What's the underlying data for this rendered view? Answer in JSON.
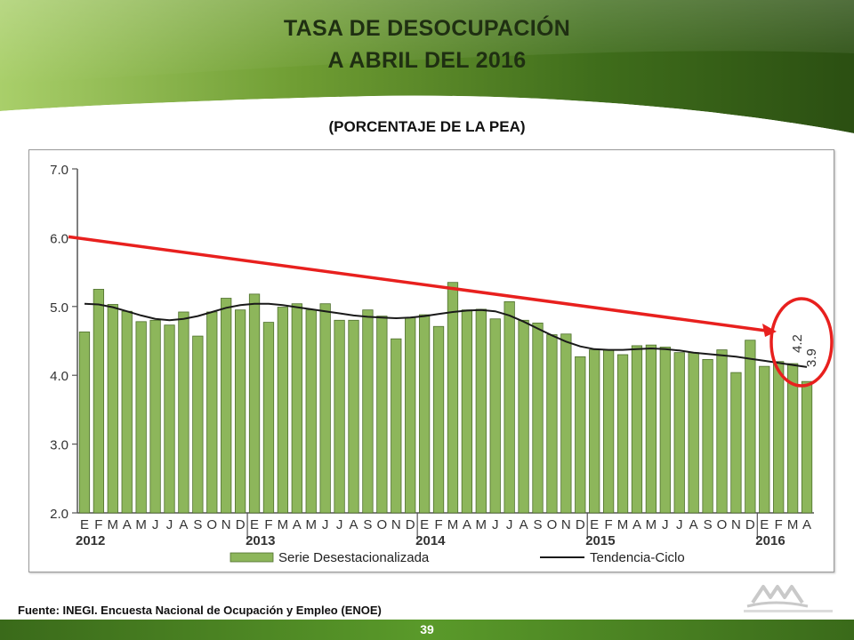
{
  "header": {
    "title_line1": "TASA DE DESOCUPACIÓN",
    "title_line2": "A ABRIL DEL 2016",
    "subtitle": "(PORCENTAJE DE LA PEA)"
  },
  "footer": {
    "source": "Fuente: INEGI. Encuesta Nacional de Ocupación y Empleo (ENOE)",
    "page_number": "39"
  },
  "colors": {
    "banner_dark": "#2f5814",
    "banner_light": "#8fbf4f",
    "bar_fill": "#8db65b",
    "bar_stroke": "#4e6f2c",
    "trend_line": "#1a1a1a",
    "annotation_red": "#e8201e"
  },
  "chart_data": {
    "type": "bar",
    "ylim": [
      2.0,
      7.0
    ],
    "yticks": [
      "7.0",
      "6.0",
      "5.0",
      "4.0",
      "3.0",
      "2.0"
    ],
    "grid": false,
    "month_labels": [
      "E",
      "F",
      "M",
      "A",
      "M",
      "J",
      "J",
      "A",
      "S",
      "O",
      "N",
      "D",
      "E",
      "F",
      "M",
      "A",
      "M",
      "J",
      "J",
      "A",
      "S",
      "O",
      "N",
      "D",
      "E",
      "F",
      "M",
      "A",
      "M",
      "J",
      "J",
      "A",
      "S",
      "O",
      "N",
      "D",
      "E",
      "F",
      "M",
      "A",
      "M",
      "J",
      "J",
      "A",
      "S",
      "O",
      "N",
      "D",
      "E",
      "F",
      "M",
      "A"
    ],
    "year_labels": [
      {
        "label": "2012",
        "start_index": 0
      },
      {
        "label": "2013",
        "start_index": 12
      },
      {
        "label": "2014",
        "start_index": 24
      },
      {
        "label": "2015",
        "start_index": 36
      },
      {
        "label": "2016",
        "start_index": 48
      }
    ],
    "series": [
      {
        "name": "Serie Desestacionalizada",
        "type": "bar",
        "values": [
          4.63,
          5.25,
          5.03,
          4.93,
          4.78,
          4.8,
          4.73,
          4.92,
          4.57,
          4.92,
          5.12,
          4.95,
          5.18,
          4.77,
          4.99,
          5.04,
          4.95,
          5.04,
          4.8,
          4.8,
          4.95,
          4.86,
          4.53,
          4.84,
          4.88,
          4.71,
          5.35,
          4.95,
          4.96,
          4.82,
          5.07,
          4.8,
          4.76,
          4.59,
          4.6,
          4.27,
          4.37,
          4.37,
          4.3,
          4.43,
          4.44,
          4.41,
          4.33,
          4.33,
          4.23,
          4.37,
          4.04,
          4.51,
          4.13,
          4.2,
          4.17,
          3.91
        ]
      },
      {
        "name": "Tendencia-Ciclo",
        "type": "line",
        "values": [
          5.04,
          5.03,
          4.99,
          4.93,
          4.87,
          4.82,
          4.8,
          4.82,
          4.86,
          4.92,
          4.98,
          5.02,
          5.04,
          5.04,
          5.02,
          4.99,
          4.96,
          4.93,
          4.9,
          4.87,
          4.85,
          4.84,
          4.83,
          4.84,
          4.86,
          4.89,
          4.92,
          4.94,
          4.95,
          4.93,
          4.87,
          4.78,
          4.68,
          4.58,
          4.49,
          4.42,
          4.38,
          4.37,
          4.37,
          4.38,
          4.39,
          4.38,
          4.36,
          4.33,
          4.31,
          4.29,
          4.27,
          4.24,
          4.21,
          4.18,
          4.15,
          4.12
        ]
      }
    ],
    "annotations": [
      "4.2",
      "3.9"
    ]
  }
}
